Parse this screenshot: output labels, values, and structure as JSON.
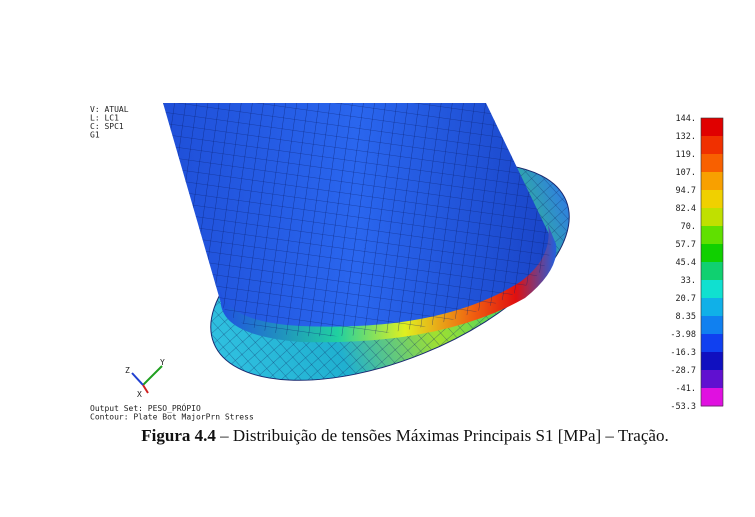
{
  "view_info": [
    "V: ATUAL",
    "L: LC1",
    "C: SPC1",
    "G1"
  ],
  "legend": {
    "labels": [
      "144.",
      "132.",
      "119.",
      "107.",
      "94.7",
      "82.4",
      "70.",
      "57.7",
      "45.4",
      "33.",
      "20.7",
      "8.35",
      "-3.98",
      "-16.3",
      "-28.7",
      "-41.",
      "-53.3"
    ]
  },
  "axes_triad": [
    "Z",
    "Y",
    "X"
  ],
  "output_info": [
    "Output Set: PESO_PRÓPIO",
    "Contour: Plate Bot MajorPrn Stress"
  ],
  "caption": {
    "label": "Figura 4.4",
    "text": "– Distribuição de tensões Máximas Principais S1 [MPa] – Tração."
  }
}
